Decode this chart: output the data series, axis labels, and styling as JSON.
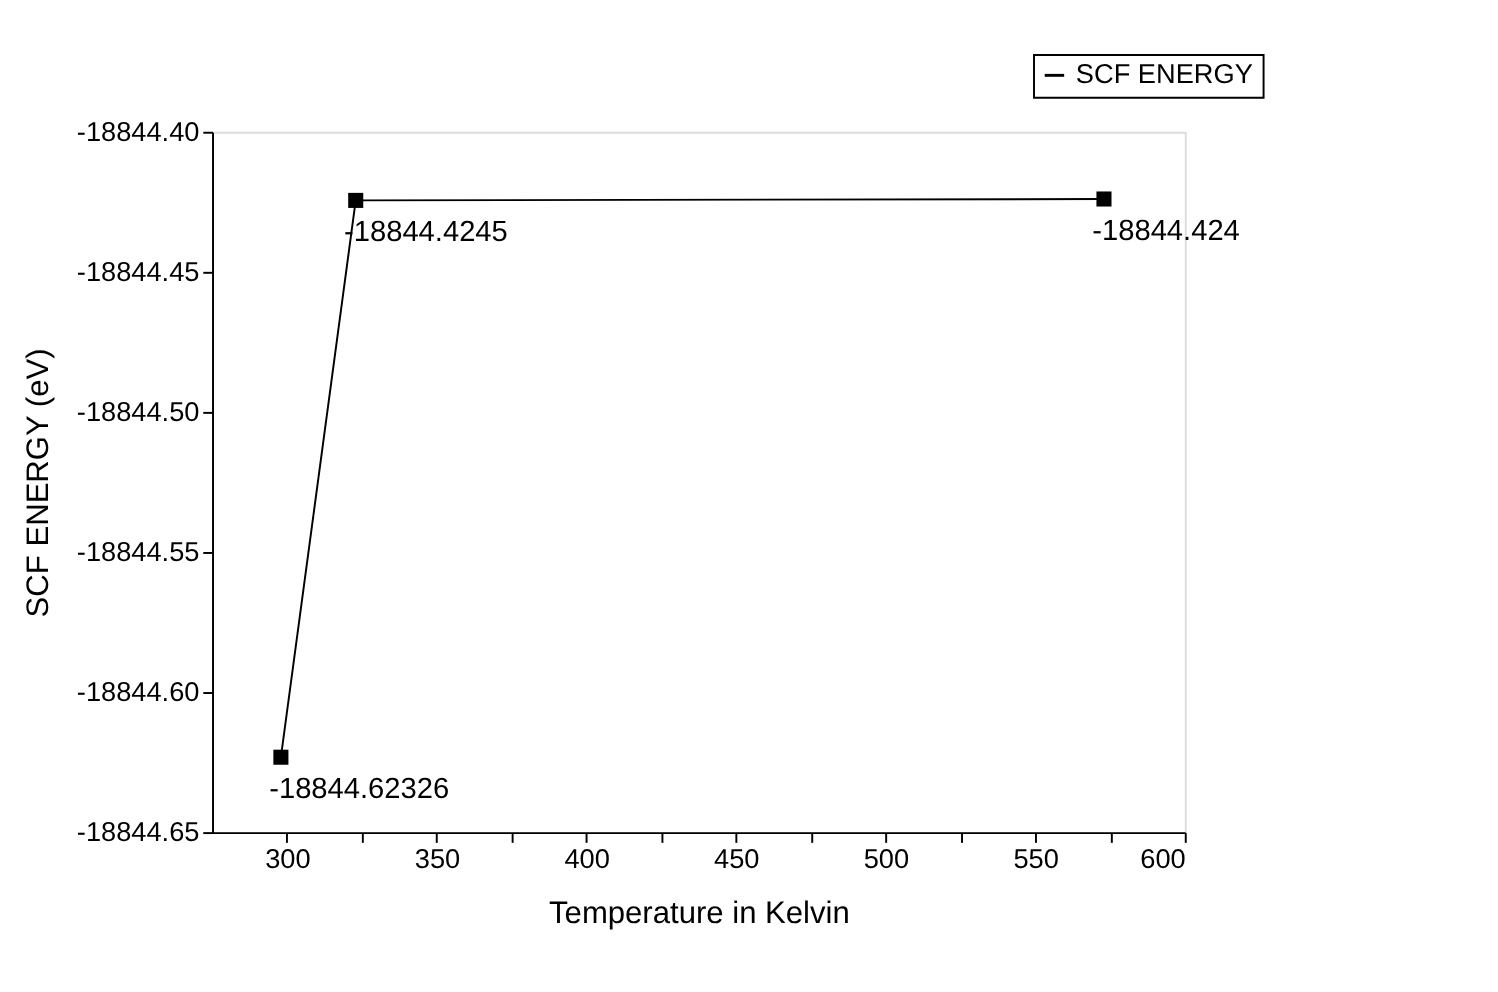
{
  "chart_data": {
    "type": "line",
    "xlabel": "Temperature in Kelvin",
    "ylabel": "SCF ENERGY (eV)",
    "x": [
      298,
      323,
      573
    ],
    "series": [
      {
        "name": "SCF ENERGY",
        "color": "#000000",
        "values": [
          -18844.62326,
          -18844.4245,
          -18844.424
        ]
      }
    ],
    "value_labels": [
      "-18844.62326",
      "-18844.4245",
      "-18844.424"
    ],
    "xlim": [
      275,
      600
    ],
    "xticks": [
      300,
      {
        "value": 325,
        "label": null
      },
      350,
      {
        "value": 375,
        "label": null
      },
      400,
      {
        "value": 425,
        "label": null
      },
      450,
      {
        "value": 475,
        "label": null
      },
      500,
      {
        "value": 525,
        "label": null
      },
      550,
      {
        "value": 575,
        "label": null
      },
      600
    ],
    "ylim": [
      -18844.65,
      -18844.4
    ],
    "yticks": [
      {
        "value": -18844.65,
        "label": "-18844.65"
      },
      {
        "value": -18844.6,
        "label": "-18844.60"
      },
      {
        "value": -18844.55,
        "label": "-18844.55"
      },
      {
        "value": -18844.5,
        "label": "-18844.50"
      },
      {
        "value": -18844.45,
        "label": "-18844.45"
      },
      {
        "value": -18844.4,
        "label": "-18844.40"
      }
    ],
    "marker": "square",
    "line_style": "solid",
    "legend": "top right",
    "grid": false
  }
}
